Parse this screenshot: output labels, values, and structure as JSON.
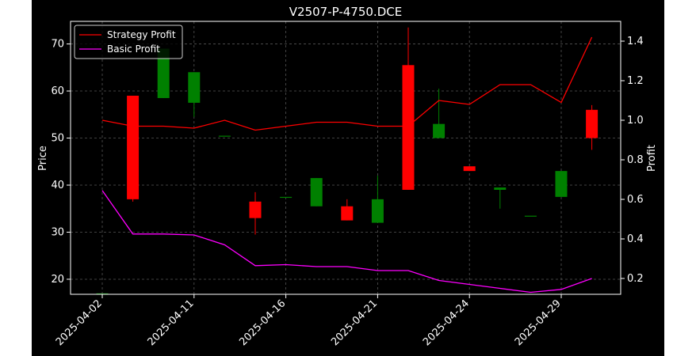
{
  "chart_data": {
    "type": "candlestick",
    "title": "V2507-P-4750.DCE",
    "ylabel_left": "Price",
    "ylabel_right": "Profit",
    "ylim_left": [
      16.8,
      74.8
    ],
    "ylim_right": [
      0.12,
      1.5
    ],
    "yticks_left": [
      20,
      30,
      40,
      50,
      60,
      70
    ],
    "yticks_right": [
      0.2,
      0.4,
      0.6,
      0.8,
      1.0,
      1.2,
      1.4
    ],
    "xtick_labels": [
      "2025-04-02",
      "2025-04-11",
      "2025-04-16",
      "2025-04-21",
      "2025-04-24",
      "2025-04-29"
    ],
    "xtick_index": [
      0,
      3,
      6,
      9,
      12,
      15
    ],
    "grid": true,
    "legend_position": "top-left",
    "colors": {
      "up": "#008000",
      "down": "#ff0000",
      "strategy": "#ff0000",
      "basic": "#ff00ff"
    },
    "candles": [
      {
        "index": 0,
        "open": 17.0,
        "close": 17.0,
        "high": 17.0,
        "low": 17.0
      },
      {
        "index": 1,
        "open": 59.0,
        "close": 37.0,
        "high": 59.0,
        "low": 36.5
      },
      {
        "index": 2,
        "open": 58.5,
        "close": 69.0,
        "high": 69.0,
        "low": 58.5
      },
      {
        "index": 3,
        "open": 57.5,
        "close": 64.0,
        "high": 64.0,
        "low": 54.5
      },
      {
        "index": 4,
        "open": 50.5,
        "close": 50.5,
        "high": 50.5,
        "low": 50.5
      },
      {
        "index": 5,
        "open": 36.5,
        "close": 33.0,
        "high": 38.5,
        "low": 29.5
      },
      {
        "index": 6,
        "open": 37.5,
        "close": 37.5,
        "high": 37.5,
        "low": 37.5
      },
      {
        "index": 7,
        "open": 35.5,
        "close": 41.5,
        "high": 41.5,
        "low": 35.5
      },
      {
        "index": 8,
        "open": 35.5,
        "close": 32.5,
        "high": 37.0,
        "low": 32.5
      },
      {
        "index": 9,
        "open": 32.0,
        "close": 37.0,
        "high": 42.0,
        "low": 32.0
      },
      {
        "index": 10,
        "open": 65.5,
        "close": 39.0,
        "high": 73.5,
        "low": 39.0
      },
      {
        "index": 11,
        "open": 50.0,
        "close": 53.0,
        "high": 60.5,
        "low": 50.0
      },
      {
        "index": 12,
        "open": 44.0,
        "close": 43.0,
        "high": 44.0,
        "low": 43.0
      },
      {
        "index": 13,
        "open": 39.0,
        "close": 39.5,
        "high": 39.5,
        "low": 35.0
      },
      {
        "index": 14,
        "open": 33.5,
        "close": 33.5,
        "high": 33.5,
        "low": 33.5
      },
      {
        "index": 15,
        "open": 37.5,
        "close": 43.0,
        "high": 43.0,
        "low": 37.5
      },
      {
        "index": 16,
        "open": 56.0,
        "close": 50.0,
        "high": 57.0,
        "low": 47.5
      }
    ],
    "series": [
      {
        "name": "Strategy Profit",
        "values": [
          1.0,
          0.97,
          0.97,
          0.96,
          1.0,
          0.95,
          0.97,
          0.99,
          0.99,
          0.97,
          0.97,
          1.1,
          1.08,
          1.18,
          1.18,
          1.09,
          1.42
        ]
      },
      {
        "name": "Basic Profit",
        "values": [
          0.645,
          0.425,
          0.425,
          0.42,
          0.37,
          0.265,
          0.27,
          0.26,
          0.26,
          0.24,
          0.24,
          0.19,
          0.17,
          0.15,
          0.13,
          0.145,
          0.2
        ]
      }
    ]
  }
}
